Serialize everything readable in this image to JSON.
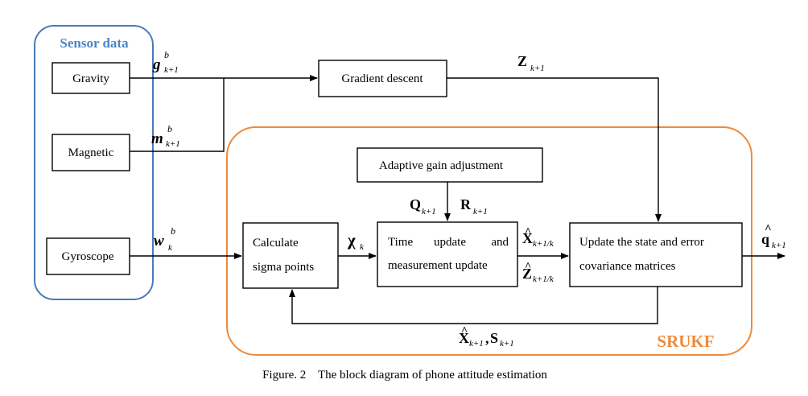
{
  "groups": {
    "sensor_title": "Sensor data",
    "srukf_title": "SRUKF"
  },
  "colors": {
    "sensor_border": "#4a7ab7",
    "sensor_title": "#4a86c8",
    "srukf_border": "#ee8a3a",
    "srukf_title": "#ee8a3a"
  },
  "boxes": {
    "gravity": "Gravity",
    "magnetic": "Magnetic",
    "gyroscope": "Gyroscope",
    "gradient": "Gradient descent",
    "adaptive": "Adaptive gain adjustment",
    "sigma_line1": "Calculate",
    "sigma_line2": "sigma points",
    "time_w1": "Time",
    "time_w2": "update",
    "time_w3": "and",
    "time_line2": "measurement update",
    "update_line1": "Update the state and error",
    "update_line2": "covariance matrices"
  },
  "signals": {
    "g": {
      "base": "g",
      "sup": "b",
      "sub": "k+1"
    },
    "m": {
      "base": "m",
      "sup": "b",
      "sub": "k+1"
    },
    "w": {
      "base": "w",
      "sup": "b",
      "sub": "k"
    },
    "z": {
      "base": "Z",
      "sub": "k+1"
    },
    "q": {
      "base": "Q",
      "sub": "k+1"
    },
    "r": {
      "base": "R",
      "sub": "k+1"
    },
    "chi": {
      "base": "χ",
      "sub": "k"
    },
    "xhat_pred": {
      "base": "X",
      "hat": "^",
      "sub": "k+1/k"
    },
    "zhat_pred": {
      "base": "Z",
      "hat": "^",
      "sub": "k+1/k"
    },
    "qhat": {
      "base": "q",
      "hat": "^",
      "sub": "k+1"
    },
    "feedback": {
      "base1": "X",
      "hat1": "^",
      "sub1": "k+1",
      "sep": ",",
      "base2": "S",
      "sub2": "k+1"
    }
  },
  "caption": "Figure. 2    The block diagram of phone attitude estimation"
}
